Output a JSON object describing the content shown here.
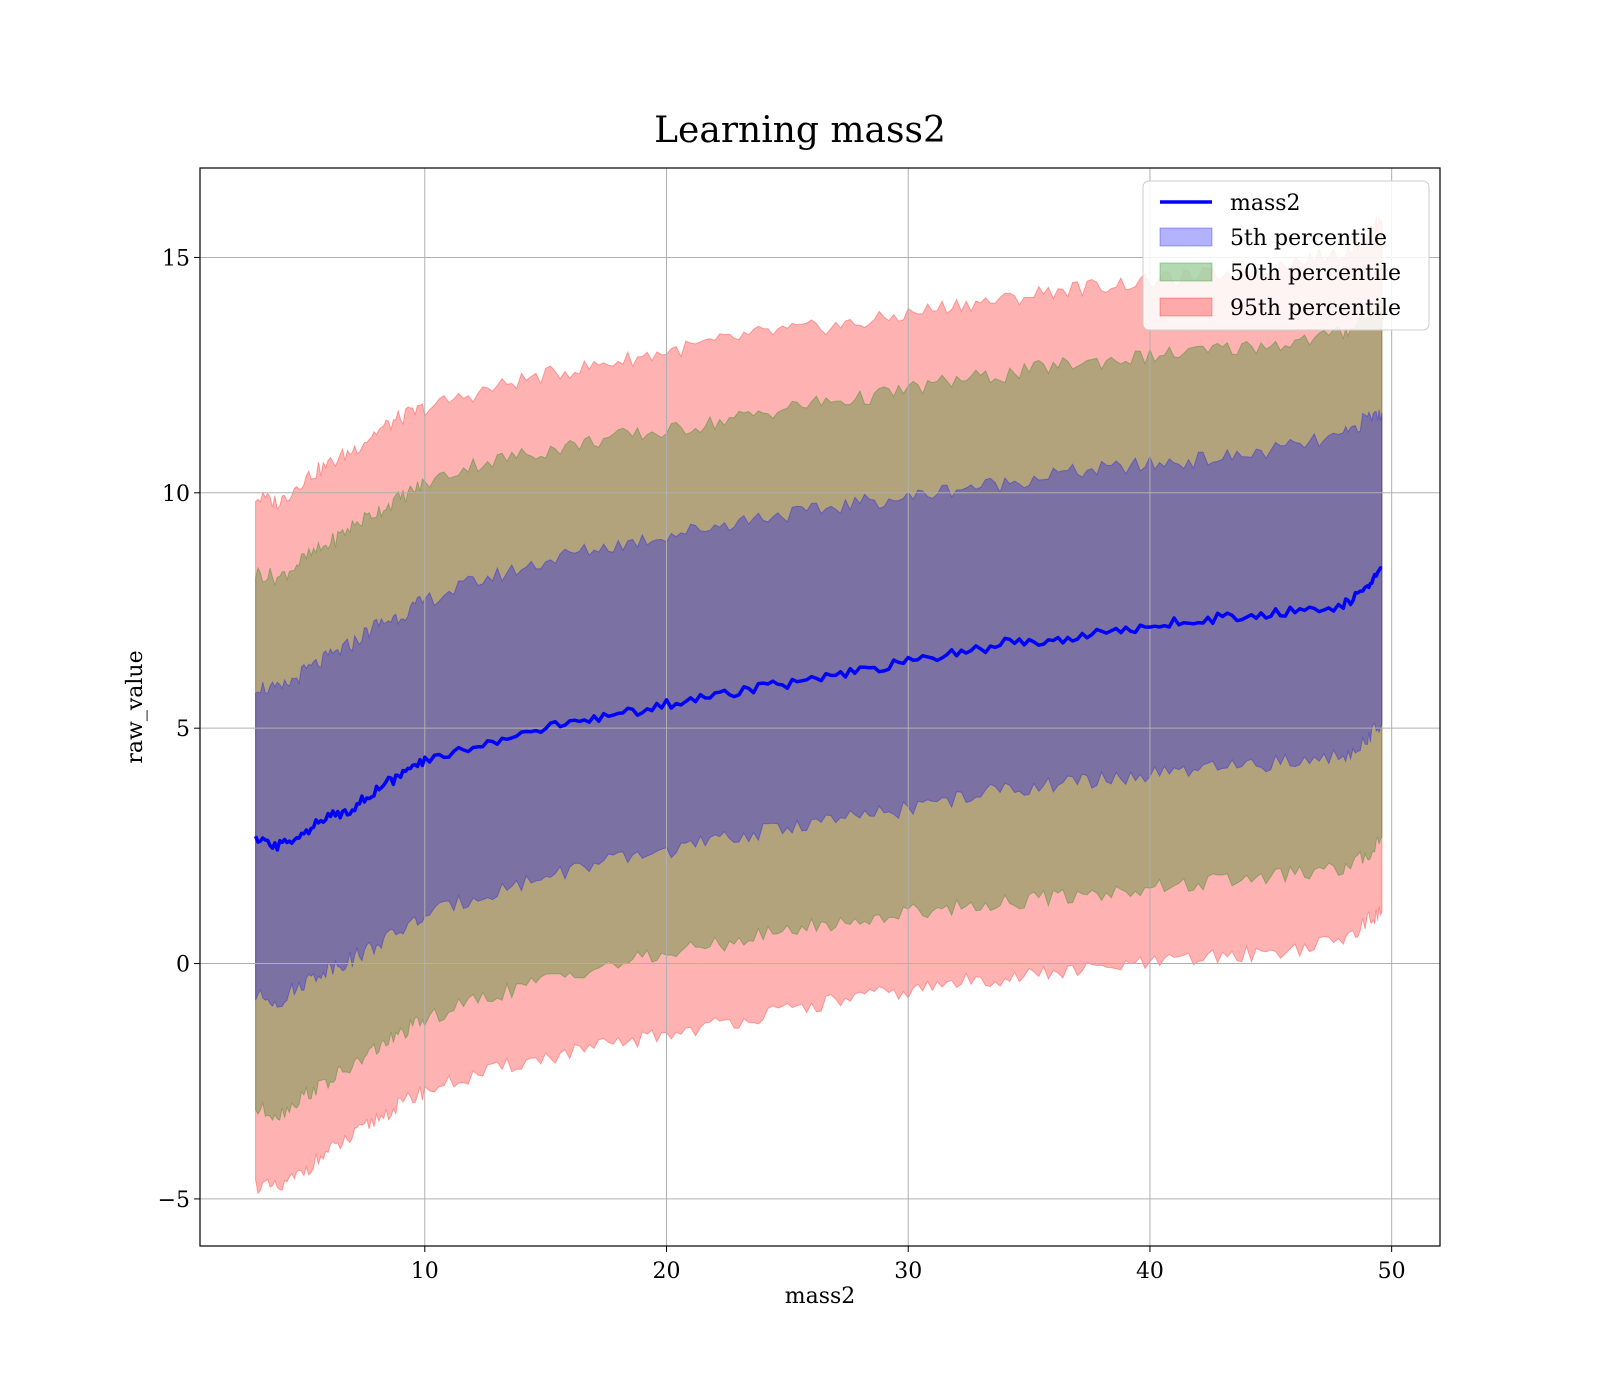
{
  "chart_data": {
    "type": "area",
    "title": "Learning mass2",
    "xlabel": "mass2",
    "ylabel": "raw_value",
    "xlim": [
      0.7,
      52.0
    ],
    "ylim": [
      -6.0,
      16.9
    ],
    "xticks": [
      10,
      20,
      30,
      40,
      50
    ],
    "xtick_labels": [
      "10",
      "20",
      "30",
      "40",
      "50"
    ],
    "yticks": [
      -5,
      0,
      5,
      10,
      15
    ],
    "ytick_labels": [
      "−5",
      "0",
      "5",
      "10",
      "15"
    ],
    "grid": true,
    "legend_position": "top-right",
    "x": [
      3.0,
      4.0,
      5.0,
      6.0,
      7.0,
      8.0,
      9.0,
      10.0,
      12.0,
      14.0,
      16.0,
      18.0,
      20.0,
      22.0,
      24.0,
      26.0,
      28.0,
      30.0,
      32.0,
      34.0,
      36.0,
      38.0,
      40.0,
      42.0,
      44.0,
      46.0,
      48.0,
      49.0,
      49.6
    ],
    "series": [
      {
        "name": "mass2",
        "type": "line",
        "color": "#0000ff",
        "values": [
          2.6,
          2.5,
          2.8,
          3.1,
          3.3,
          3.7,
          4.0,
          4.3,
          4.6,
          4.9,
          5.1,
          5.3,
          5.5,
          5.7,
          5.9,
          6.0,
          6.2,
          6.4,
          6.6,
          6.8,
          6.9,
          7.0,
          7.2,
          7.3,
          7.4,
          7.5,
          7.6,
          8.0,
          8.4
        ]
      },
      {
        "name": "5th percentile",
        "type": "band",
        "color": "#0000ff",
        "lower": [
          -0.7,
          -0.8,
          -0.4,
          -0.1,
          0.1,
          0.4,
          0.7,
          1.0,
          1.4,
          1.7,
          2.0,
          2.2,
          2.4,
          2.6,
          2.8,
          3.0,
          3.1,
          3.3,
          3.5,
          3.7,
          3.8,
          3.9,
          4.0,
          4.1,
          4.2,
          4.3,
          4.4,
          4.8,
          5.1
        ],
        "upper": [
          5.9,
          5.8,
          6.2,
          6.5,
          6.8,
          7.2,
          7.4,
          7.7,
          8.1,
          8.4,
          8.7,
          8.9,
          9.1,
          9.3,
          9.5,
          9.6,
          9.8,
          9.9,
          10.1,
          10.2,
          10.4,
          10.5,
          10.6,
          10.7,
          10.8,
          11.0,
          11.2,
          11.6,
          11.7
        ]
      },
      {
        "name": "50th percentile",
        "type": "band",
        "color": "#008000",
        "lower": [
          -3.1,
          -3.2,
          -2.8,
          -2.5,
          -2.2,
          -1.8,
          -1.5,
          -1.2,
          -0.8,
          -0.5,
          -0.2,
          0.0,
          0.2,
          0.4,
          0.6,
          0.8,
          0.9,
          1.1,
          1.2,
          1.3,
          1.4,
          1.5,
          1.6,
          1.7,
          1.8,
          1.9,
          2.0,
          2.3,
          2.7
        ],
        "upper": [
          8.3,
          8.2,
          8.6,
          8.9,
          9.3,
          9.6,
          9.9,
          10.2,
          10.6,
          10.8,
          11.0,
          11.2,
          11.3,
          11.5,
          11.7,
          11.9,
          12.0,
          12.2,
          12.4,
          12.5,
          12.7,
          12.8,
          12.9,
          13.0,
          13.1,
          13.2,
          13.4,
          13.8,
          14.0
        ]
      },
      {
        "name": "95th percentile",
        "type": "band",
        "color": "#ff0000",
        "lower": [
          -4.7,
          -4.8,
          -4.4,
          -4.0,
          -3.7,
          -3.3,
          -3.0,
          -2.7,
          -2.4,
          -2.1,
          -1.9,
          -1.7,
          -1.5,
          -1.3,
          -1.1,
          -0.9,
          -0.7,
          -0.6,
          -0.4,
          -0.3,
          -0.2,
          -0.1,
          0.0,
          0.1,
          0.2,
          0.3,
          0.5,
          0.9,
          1.1
        ],
        "upper": [
          9.9,
          9.8,
          10.3,
          10.6,
          10.9,
          11.3,
          11.6,
          11.8,
          12.1,
          12.4,
          12.6,
          12.8,
          13.0,
          13.2,
          13.4,
          13.5,
          13.6,
          13.8,
          14.0,
          14.1,
          14.3,
          14.4,
          14.5,
          14.6,
          14.7,
          14.9,
          15.1,
          15.5,
          15.8
        ]
      }
    ]
  }
}
